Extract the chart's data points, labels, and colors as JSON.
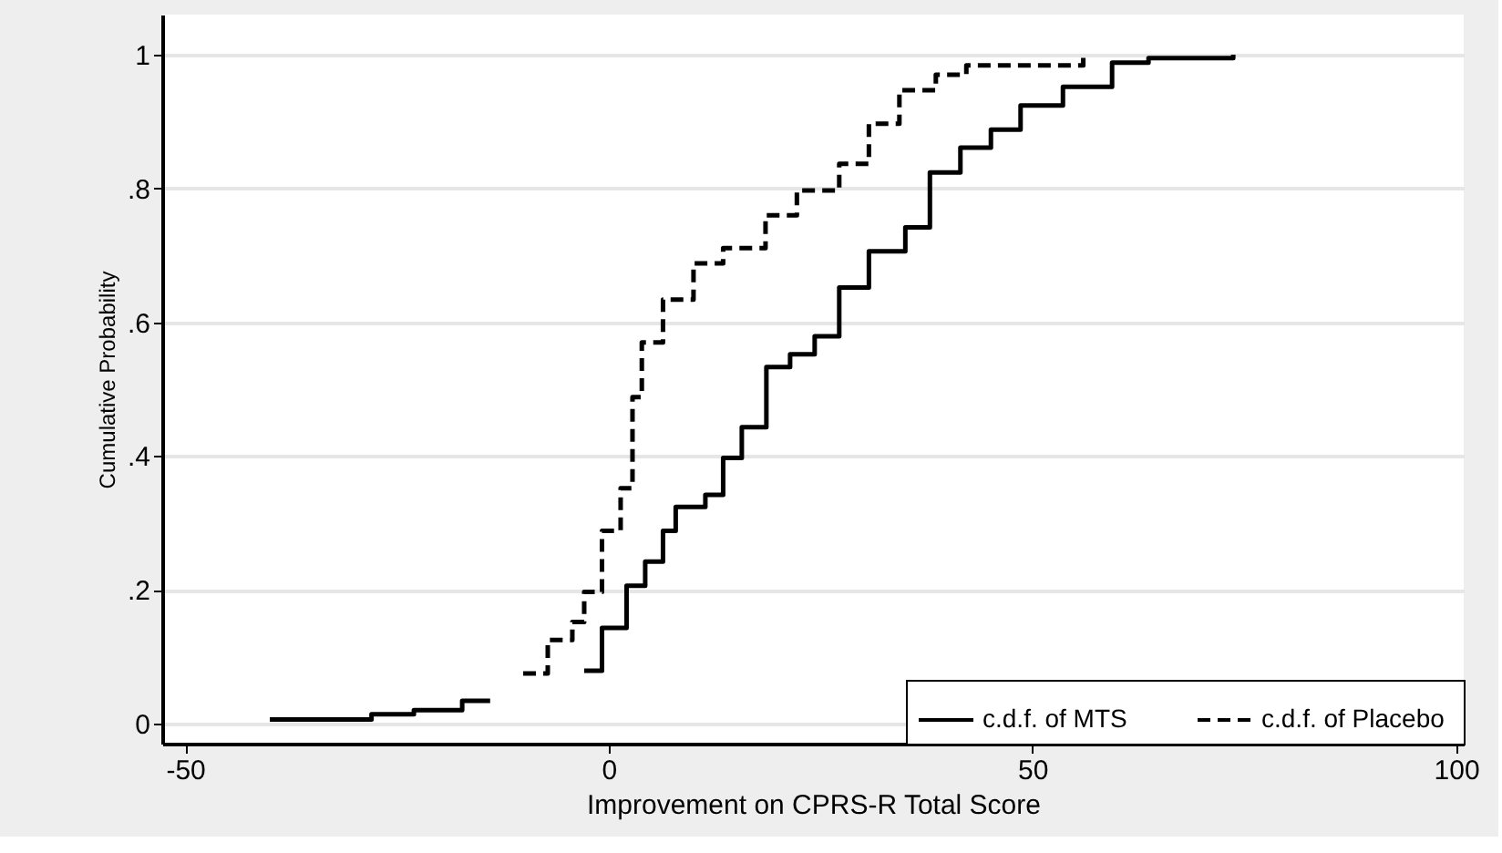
{
  "chart_data": {
    "type": "step",
    "xlabel": "Improvement on CPRS-R Total Score",
    "ylabel": "Cumulative Probability",
    "xlim": [
      -52.7,
      100.9
    ],
    "ylim": [
      -0.03,
      1.06
    ],
    "xticks": [
      -50,
      0,
      50,
      100
    ],
    "yticks": [
      0,
      {
        "value": 0.2,
        "label": ".2"
      },
      {
        "value": 0.4,
        "label": ".4"
      },
      {
        "value": 0.6,
        "label": ".6"
      },
      {
        "value": 0.8,
        "label": ".8"
      },
      1
    ],
    "grid": "y",
    "legend": "bottom right",
    "marker": "none",
    "series": [
      {
        "name": "c.d.f. of  MTS",
        "color": "#000000",
        "line_style": "solid",
        "x": [
          -40,
          -28,
          -23,
          -17.3,
          -14,
          null,
          -2.9,
          -0.8,
          2.1,
          4.3,
          6.4,
          7.9,
          11.4,
          13.5,
          15.7,
          18.6,
          21.4,
          24.3,
          27.2,
          30.7,
          35.0,
          37.9,
          41.5,
          45.1,
          48.6,
          53.6,
          59.4,
          63.7,
          73.7
        ],
        "values": [
          0.006,
          0.014,
          0.02,
          0.034,
          0.034,
          null,
          0.079,
          0.143,
          0.206,
          0.242,
          0.288,
          0.324,
          0.342,
          0.397,
          0.443,
          0.533,
          0.552,
          0.579,
          0.652,
          0.706,
          0.742,
          0.824,
          0.861,
          0.888,
          0.924,
          0.952,
          0.988,
          0.995,
          1
        ]
      },
      {
        "name": "c.d.f. of  Placebo",
        "color": "#000000",
        "line_style": "dashed",
        "x": [
          -10.1,
          -7.2,
          -4.3,
          -2.9,
          -0.8,
          1.4,
          2.8,
          3.9,
          6.4,
          10.0,
          13.5,
          18.5,
          22.2,
          27.2,
          30.7,
          34.3,
          38.6,
          42.2,
          56.0
        ],
        "values": [
          0.075,
          0.125,
          0.152,
          0.197,
          0.288,
          0.352,
          0.488,
          0.57,
          0.634,
          0.688,
          0.711,
          0.76,
          0.797,
          0.837,
          0.897,
          0.947,
          0.97,
          0.984,
          1
        ]
      }
    ]
  }
}
